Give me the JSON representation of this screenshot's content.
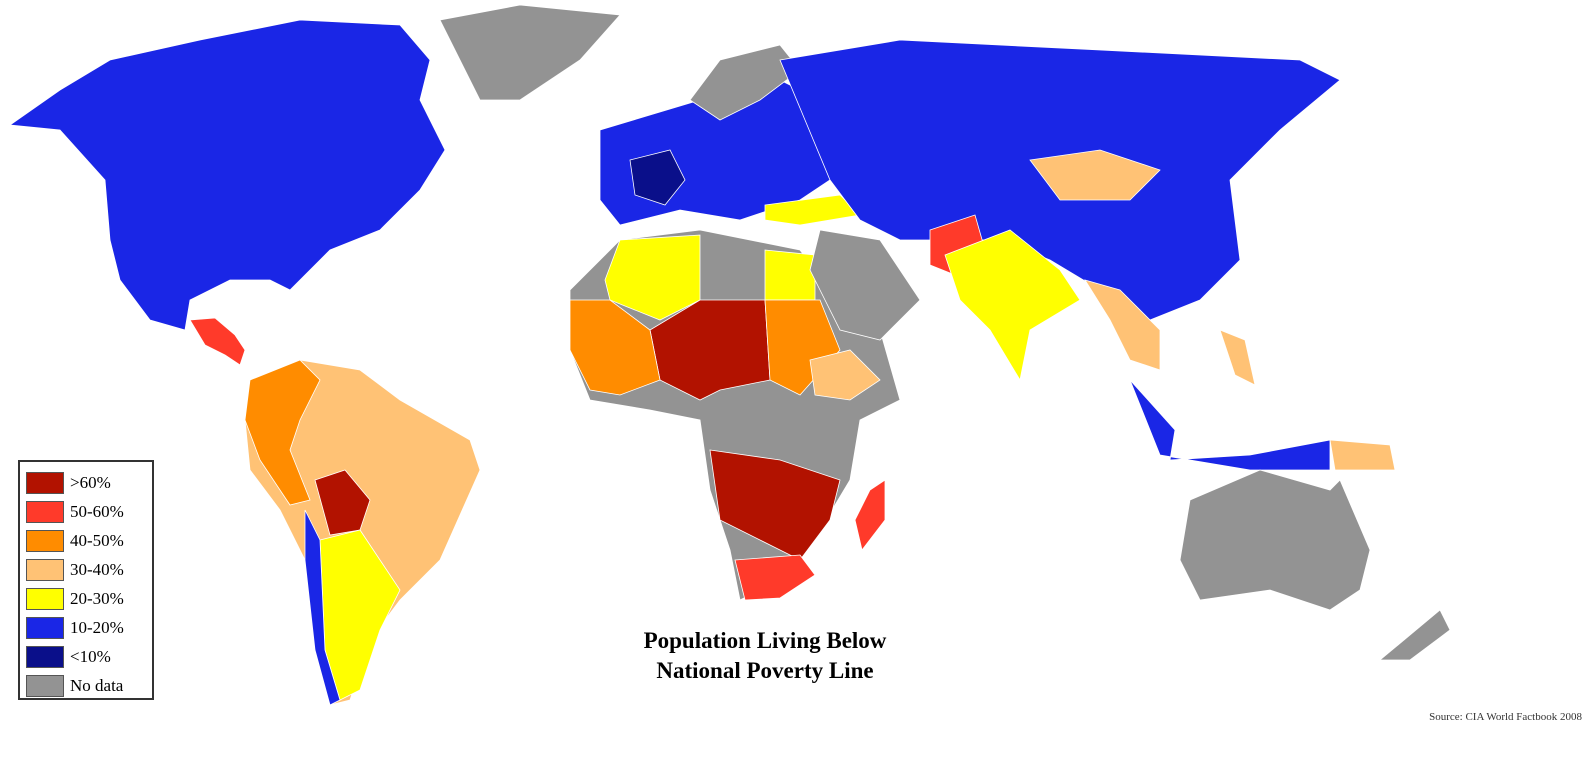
{
  "title_lines": [
    "Population Living Below",
    "National Poverty Line"
  ],
  "source": "Source: CIA World Factbook 2008",
  "legend": [
    {
      "label": ">60%",
      "color": "#b21200"
    },
    {
      "label": "50-60%",
      "color": "#ff3a2a"
    },
    {
      "label": "40-50%",
      "color": "#ff8c00"
    },
    {
      "label": "30-40%",
      "color": "#ffc275"
    },
    {
      "label": "20-30%",
      "color": "#ffff00"
    },
    {
      "label": "10-20%",
      "color": "#1a26e6"
    },
    {
      "label": "<10%",
      "color": "#0a0f8a"
    },
    {
      "label": "No data",
      "color": "#939393"
    }
  ]
}
